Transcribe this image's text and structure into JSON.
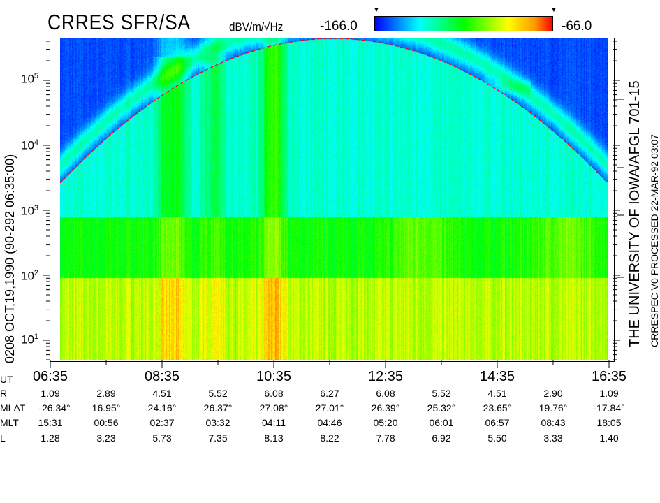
{
  "header": {
    "title": "CRRES SFR/SA",
    "units": "dBV/m/√Hz",
    "colorbar_min": "-166.0",
    "colorbar_max": "-66.0",
    "colorbar_colors": [
      "#0000ff",
      "#00ffff",
      "#00ff00",
      "#ffff00",
      "#ff0000"
    ]
  },
  "left_label": "0208   OCT,19,1990   (90-292 06:35:00)",
  "right_label_1": "THE UNIVERSITY OF IOWA/AFGL 701-15",
  "right_label_2": "CRRESPEC V0    PROCESSED 22-MAR-92   03:07",
  "chart_data": {
    "type": "heatmap",
    "xlabel": "UT",
    "ylabel": "",
    "x_range": [
      "06:35",
      "16:35"
    ],
    "y_scale": "log",
    "y_range": [
      5.6,
      400000
    ],
    "y_ticks": [
      {
        "base": "10",
        "exp": "1"
      },
      {
        "base": "10",
        "exp": "2"
      },
      {
        "base": "10",
        "exp": "3"
      },
      {
        "base": "10",
        "exp": "4"
      },
      {
        "base": "10",
        "exp": "5"
      }
    ],
    "colorbar_range": [
      -166.0,
      -66.0
    ],
    "colorbar_units": "dBV/m/√Hz",
    "overlay": "red dashed curve (electron cyclotron frequency)"
  },
  "ephemeris": {
    "ut": {
      "label": "UT",
      "values": [
        "06:35",
        "",
        "08:35",
        "",
        "10:35",
        "",
        "12:35",
        "",
        "14:35",
        "",
        "16:35"
      ]
    },
    "rows": [
      {
        "label": "R",
        "values": [
          "1.09",
          "2.89",
          "4.51",
          "5.52",
          "6.08",
          "6.27",
          "6.08",
          "5.52",
          "4.51",
          "2.90",
          "1.09"
        ]
      },
      {
        "label": "MLAT",
        "values": [
          "-26.34°",
          "16.95°",
          "24.16°",
          "26.37°",
          "27.08°",
          "27.01°",
          "26.39°",
          "25.32°",
          "23.65°",
          "19.76°",
          "-17.84°"
        ]
      },
      {
        "label": "MLT",
        "values": [
          "15:31",
          "00:56",
          "02:37",
          "03:32",
          "04:11",
          "04:46",
          "05:20",
          "06:01",
          "06:57",
          "08:43",
          "18:05"
        ]
      },
      {
        "label": "L",
        "values": [
          "1.28",
          "3.23",
          "5.73",
          "7.35",
          "8.13",
          "8.22",
          "7.78",
          "6.92",
          "5.50",
          "3.33",
          "1.40"
        ]
      }
    ]
  }
}
